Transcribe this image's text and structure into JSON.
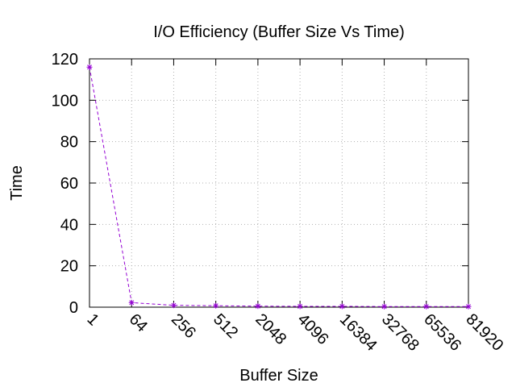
{
  "chart_data": {
    "type": "line",
    "title": "I/O Efficiency (Buffer Size Vs Time)",
    "xlabel": "Buffer Size",
    "ylabel": "Time",
    "categories": [
      "1",
      "64",
      "256",
      "512",
      "2048",
      "4096",
      "16384",
      "32768",
      "65536",
      "81920"
    ],
    "values": [
      116,
      2.2,
      0.9,
      0.7,
      0.5,
      0.4,
      0.4,
      0.3,
      0.3,
      0.3
    ],
    "ylim": [
      0,
      120
    ],
    "yticks": [
      "0",
      "20",
      "40",
      "60",
      "80",
      "100",
      "120"
    ],
    "grid": true,
    "series_color": "#9400d3",
    "line_style": "dashed",
    "marker": "asterisk"
  }
}
